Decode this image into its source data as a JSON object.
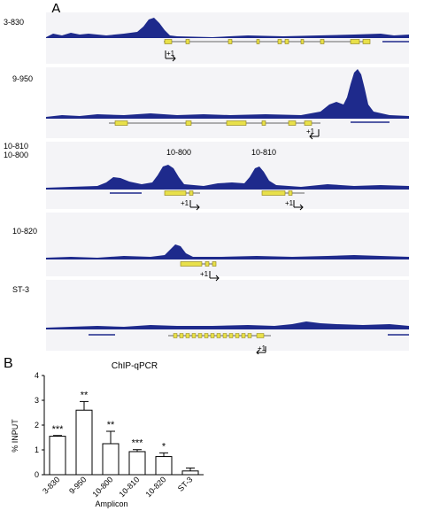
{
  "figure": {
    "panel_a_letter": "A",
    "panel_b_letter": "B",
    "tracks": [
      {
        "label": "3-830",
        "peak_labels": [],
        "tss_labels": [
          "+1"
        ]
      },
      {
        "label": "9-950",
        "peak_labels": [],
        "tss_labels": [
          "+1"
        ]
      },
      {
        "label": "10-810\n10-800",
        "peak_labels": [
          "10-800",
          "10-810"
        ],
        "tss_labels": [
          "+1",
          "+1"
        ]
      },
      {
        "label": "10-820",
        "peak_labels": [],
        "tss_labels": [
          "+1"
        ]
      },
      {
        "label": "ST-3",
        "peak_labels": [],
        "tss_labels": [
          "+1"
        ]
      }
    ],
    "colors": {
      "signal": "#1e2a8c",
      "gene": "#e8e04a",
      "gene_outline": "#8a7d10",
      "bar_fill": "#ffffff"
    }
  },
  "chart_data": {
    "type": "bar",
    "title": "ChIP-qPCR",
    "xlabel": "Amplicon",
    "ylabel": "% INPUT",
    "ylim": [
      0,
      4
    ],
    "yticks": [
      "0",
      "1",
      "2",
      "3",
      "4"
    ],
    "categories": [
      "3-830",
      "9-950",
      "10-800",
      "10-810",
      "10-820",
      "ST-3"
    ],
    "values": [
      1.55,
      2.6,
      1.25,
      0.93,
      0.73,
      0.15
    ],
    "errors": [
      0.03,
      0.35,
      0.5,
      0.08,
      0.15,
      0.12
    ],
    "significance": [
      "***",
      "**",
      "**",
      "***",
      "*",
      ""
    ]
  }
}
